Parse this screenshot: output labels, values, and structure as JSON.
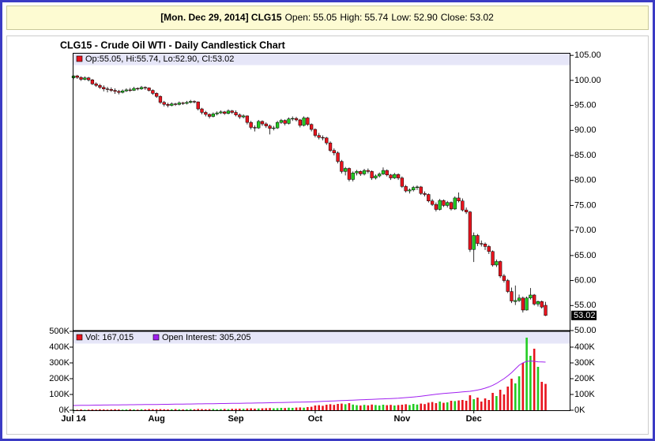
{
  "header": {
    "title": "[Mon. Dec 29, 2014] CLG15",
    "fields": [
      {
        "label": "Open:",
        "value": "55.05"
      },
      {
        "label": "High:",
        "value": "55.74"
      },
      {
        "label": "Low:",
        "value": "52.90"
      },
      {
        "label": "Close:",
        "value": "53.02"
      }
    ]
  },
  "chart_data": {
    "type": "candlestick",
    "title": "CLG15 - Crude Oil WTI - Daily Candlestick Chart",
    "legend": "Op:55.05, Hi:55.74, Lo:52.90, Cl:53.02",
    "up_color": "#22cc22",
    "down_color": "#e8141e",
    "categories": [
      "Jul 14",
      null,
      null,
      null,
      null,
      null,
      null,
      null,
      null,
      null,
      null,
      null,
      null,
      null,
      null,
      null,
      null,
      null,
      null,
      null,
      null,
      null,
      "Aug",
      null,
      null,
      null,
      null,
      null,
      null,
      null,
      null,
      null,
      null,
      null,
      null,
      null,
      null,
      null,
      null,
      null,
      null,
      null,
      null,
      "Sep",
      null,
      null,
      null,
      null,
      null,
      null,
      null,
      null,
      null,
      null,
      null,
      null,
      null,
      null,
      null,
      null,
      null,
      null,
      null,
      null,
      "Oct",
      null,
      null,
      null,
      null,
      null,
      null,
      null,
      null,
      null,
      null,
      null,
      null,
      null,
      null,
      null,
      null,
      null,
      null,
      null,
      null,
      null,
      null,
      "Nov",
      null,
      null,
      null,
      null,
      null,
      null,
      null,
      null,
      null,
      null,
      null,
      null,
      null,
      null,
      null,
      null,
      null,
      null,
      "Dec",
      null,
      null,
      null,
      null,
      null,
      null,
      null,
      null,
      null,
      null,
      null,
      null,
      null,
      null,
      null,
      null,
      null,
      null,
      null
    ],
    "ohlc": [
      [
        100.5,
        101.0,
        100.2,
        100.9
      ],
      [
        100.9,
        101.1,
        100.3,
        100.6
      ],
      [
        100.6,
        100.8,
        99.9,
        100.2
      ],
      [
        100.2,
        100.8,
        100.0,
        100.5
      ],
      [
        100.5,
        100.7,
        99.8,
        100.1
      ],
      [
        100.1,
        100.3,
        99.1,
        99.3
      ],
      [
        99.3,
        99.6,
        98.7,
        99.0
      ],
      [
        99.0,
        99.3,
        98.3,
        98.6
      ],
      [
        98.6,
        99.0,
        97.8,
        98.3
      ],
      [
        98.3,
        98.7,
        97.6,
        98.2
      ],
      [
        98.2,
        98.6,
        97.7,
        98.0
      ],
      [
        98.0,
        98.4,
        97.3,
        97.8
      ],
      [
        97.8,
        98.1,
        97.2,
        97.6
      ],
      [
        97.6,
        98.2,
        97.4,
        97.9
      ],
      [
        97.9,
        98.4,
        97.7,
        98.1
      ],
      [
        98.1,
        98.5,
        97.7,
        98.0
      ],
      [
        98.0,
        98.7,
        97.9,
        98.4
      ],
      [
        98.4,
        98.6,
        98.0,
        98.3
      ],
      [
        98.3,
        98.9,
        98.1,
        98.6
      ],
      [
        98.6,
        98.8,
        98.1,
        98.5
      ],
      [
        98.5,
        98.6,
        97.8,
        98.0
      ],
      [
        98.0,
        98.2,
        97.1,
        97.4
      ],
      [
        97.4,
        97.6,
        96.5,
        96.8
      ],
      [
        96.8,
        97.0,
        95.3,
        95.6
      ],
      [
        95.6,
        95.9,
        94.8,
        95.2
      ],
      [
        95.2,
        95.5,
        94.6,
        95.0
      ],
      [
        95.0,
        95.6,
        94.8,
        95.3
      ],
      [
        95.3,
        95.5,
        94.9,
        95.2
      ],
      [
        95.2,
        95.8,
        95.0,
        95.5
      ],
      [
        95.5,
        95.7,
        95.1,
        95.4
      ],
      [
        95.4,
        95.9,
        95.2,
        95.6
      ],
      [
        95.6,
        96.1,
        95.4,
        95.8
      ],
      [
        95.8,
        96.0,
        95.4,
        95.7
      ],
      [
        95.7,
        95.8,
        94.0,
        94.3
      ],
      [
        94.3,
        94.5,
        93.2,
        93.6
      ],
      [
        93.6,
        93.9,
        92.8,
        93.2
      ],
      [
        93.2,
        93.4,
        92.4,
        92.8
      ],
      [
        92.8,
        93.6,
        92.6,
        93.3
      ],
      [
        93.3,
        93.8,
        93.0,
        93.5
      ],
      [
        93.5,
        94.0,
        93.3,
        93.7
      ],
      [
        93.7,
        93.9,
        93.1,
        93.4
      ],
      [
        93.4,
        94.2,
        93.2,
        93.9
      ],
      [
        93.9,
        94.1,
        93.3,
        93.6
      ],
      [
        93.6,
        94.0,
        92.8,
        93.1
      ],
      [
        93.1,
        93.4,
        92.3,
        92.7
      ],
      [
        92.7,
        93.2,
        92.4,
        92.9
      ],
      [
        92.9,
        93.0,
        91.2,
        91.6
      ],
      [
        91.6,
        91.9,
        90.2,
        90.6
      ],
      [
        90.6,
        91.0,
        89.8,
        90.5
      ],
      [
        90.5,
        92.1,
        90.3,
        91.8
      ],
      [
        91.8,
        92.0,
        90.9,
        91.3
      ],
      [
        91.3,
        91.6,
        90.5,
        90.9
      ],
      [
        90.9,
        91.2,
        89.2,
        90.4
      ],
      [
        90.4,
        90.9,
        90.0,
        90.5
      ],
      [
        90.5,
        91.9,
        90.3,
        91.6
      ],
      [
        91.6,
        92.3,
        91.3,
        92.0
      ],
      [
        92.0,
        92.2,
        91.0,
        91.4
      ],
      [
        91.4,
        92.6,
        91.2,
        92.3
      ],
      [
        92.3,
        92.8,
        91.9,
        92.4
      ],
      [
        92.4,
        92.7,
        91.8,
        92.1
      ],
      [
        92.1,
        92.3,
        90.6,
        91.0
      ],
      [
        91.0,
        92.8,
        90.8,
        92.5
      ],
      [
        92.5,
        92.7,
        90.9,
        91.2
      ],
      [
        91.2,
        91.4,
        89.8,
        90.2
      ],
      [
        90.2,
        90.4,
        88.6,
        89.0
      ],
      [
        89.0,
        89.5,
        88.2,
        88.6
      ],
      [
        88.6,
        89.0,
        88.0,
        88.5
      ],
      [
        88.5,
        88.7,
        87.1,
        87.5
      ],
      [
        87.5,
        87.8,
        85.7,
        86.0
      ],
      [
        86.0,
        86.4,
        85.0,
        85.5
      ],
      [
        85.5,
        85.8,
        83.4,
        83.8
      ],
      [
        83.8,
        84.1,
        81.4,
        81.8
      ],
      [
        81.8,
        82.7,
        81.0,
        82.4
      ],
      [
        82.4,
        82.6,
        79.8,
        80.2
      ],
      [
        80.2,
        81.8,
        79.8,
        81.5
      ],
      [
        81.5,
        82.1,
        81.0,
        81.8
      ],
      [
        81.8,
        82.0,
        80.9,
        81.3
      ],
      [
        81.3,
        82.3,
        81.0,
        82.0
      ],
      [
        82.0,
        82.4,
        81.4,
        81.8
      ],
      [
        81.8,
        82.0,
        80.1,
        80.5
      ],
      [
        80.5,
        81.2,
        80.2,
        80.9
      ],
      [
        80.9,
        81.6,
        80.6,
        81.3
      ],
      [
        81.3,
        82.6,
        81.1,
        82.0
      ],
      [
        82.0,
        82.2,
        80.8,
        81.1
      ],
      [
        81.1,
        81.3,
        80.1,
        80.5
      ],
      [
        80.5,
        81.5,
        80.3,
        81.2
      ],
      [
        81.2,
        81.4,
        80.1,
        80.5
      ],
      [
        80.5,
        80.8,
        78.5,
        78.8
      ],
      [
        78.8,
        79.1,
        77.6,
        77.9
      ],
      [
        77.9,
        78.4,
        77.4,
        78.1
      ],
      [
        78.1,
        78.9,
        77.8,
        78.6
      ],
      [
        78.6,
        79.0,
        78.1,
        78.7
      ],
      [
        78.7,
        78.9,
        77.1,
        77.4
      ],
      [
        77.4,
        77.8,
        76.8,
        77.2
      ],
      [
        77.2,
        77.4,
        75.6,
        75.9
      ],
      [
        75.9,
        76.3,
        74.9,
        75.2
      ],
      [
        75.2,
        75.6,
        73.8,
        74.2
      ],
      [
        74.2,
        76.3,
        74.0,
        76.0
      ],
      [
        76.0,
        76.2,
        74.7,
        75.0
      ],
      [
        75.0,
        75.9,
        74.6,
        75.6
      ],
      [
        75.6,
        75.8,
        74.0,
        74.3
      ],
      [
        74.3,
        76.8,
        74.1,
        76.5
      ],
      [
        76.5,
        77.6,
        75.6,
        75.9
      ],
      [
        75.9,
        76.4,
        73.8,
        74.1
      ],
      [
        74.1,
        74.6,
        73.3,
        73.7
      ],
      [
        73.7,
        73.9,
        65.7,
        66.2
      ],
      [
        66.2,
        69.6,
        63.7,
        69.0
      ],
      [
        69.0,
        69.3,
        66.9,
        67.4
      ],
      [
        67.4,
        68.0,
        66.8,
        67.3
      ],
      [
        67.3,
        67.6,
        66.1,
        66.8
      ],
      [
        66.8,
        67.1,
        65.3,
        65.8
      ],
      [
        65.8,
        66.0,
        62.8,
        63.1
      ],
      [
        63.1,
        64.2,
        62.7,
        63.8
      ],
      [
        63.8,
        64.0,
        60.5,
        60.9
      ],
      [
        60.9,
        61.3,
        59.6,
        60.0
      ],
      [
        60.0,
        60.3,
        57.5,
        57.8
      ],
      [
        57.8,
        58.6,
        55.5,
        55.9
      ],
      [
        55.8,
        59.0,
        55.1,
        56.0
      ],
      [
        56.0,
        57.2,
        55.7,
        56.5
      ],
      [
        56.5,
        56.8,
        53.6,
        54.1
      ],
      [
        54.1,
        56.8,
        54.0,
        56.5
      ],
      [
        56.5,
        58.5,
        56.2,
        57.1
      ],
      [
        57.1,
        57.3,
        55.0,
        55.3
      ],
      [
        55.3,
        56.0,
        54.8,
        55.8
      ],
      [
        55.8,
        56.0,
        54.4,
        54.7
      ],
      [
        55.05,
        55.74,
        52.9,
        53.02
      ]
    ],
    "ylim": [
      50,
      105.5
    ],
    "yticks": [
      {
        "value": 50,
        "label": "50.00"
      },
      {
        "value": 55,
        "label": "55.00"
      },
      {
        "value": 60,
        "label": "60.00"
      },
      {
        "value": 65,
        "label": "65.00"
      },
      {
        "value": 70,
        "label": "70.00"
      },
      {
        "value": 75,
        "label": "75.00"
      },
      {
        "value": 80,
        "label": "80.00"
      },
      {
        "value": 85,
        "label": "85.00"
      },
      {
        "value": 90,
        "label": "90.00"
      },
      {
        "value": 95,
        "label": "95.00"
      },
      {
        "value": 100,
        "label": "100.00"
      },
      {
        "value": 105,
        "label": "105.00"
      }
    ],
    "last_label": {
      "value": 53.02,
      "label": "53.02"
    },
    "volume": {
      "name": "Vol: 167,015",
      "values": [
        4000,
        3000,
        5000,
        3000,
        4000,
        5000,
        4000,
        6000,
        5000,
        4000,
        5000,
        6000,
        5000,
        4000,
        5000,
        6000,
        5000,
        4000,
        6000,
        5000,
        7000,
        6000,
        6000,
        7000,
        6000,
        5000,
        6000,
        7000,
        6000,
        5000,
        6000,
        7000,
        6000,
        8000,
        7000,
        6000,
        7000,
        8000,
        6000,
        7000,
        8000,
        7000,
        9000,
        9000,
        10000,
        9000,
        11000,
        12000,
        10000,
        11000,
        12000,
        13000,
        14000,
        12000,
        13000,
        15000,
        14000,
        16000,
        15000,
        17000,
        18000,
        16000,
        20000,
        22000,
        30000,
        32000,
        28000,
        35000,
        38000,
        34000,
        40000,
        42000,
        38000,
        45000,
        36000,
        32000,
        30000,
        34000,
        31000,
        36000,
        33000,
        30000,
        35000,
        32000,
        34000,
        30000,
        33000,
        35000,
        38000,
        33000,
        40000,
        36000,
        42000,
        39000,
        48000,
        52000,
        45000,
        55000,
        47000,
        50000,
        60000,
        58000,
        62000,
        65000,
        60000,
        95000,
        70000,
        80000,
        55000,
        75000,
        65000,
        110000,
        90000,
        130000,
        100000,
        150000,
        200000,
        170000,
        215000,
        300000,
        460000,
        345000,
        390000,
        275000,
        180000,
        167015
      ]
    },
    "open_interest": {
      "name": "Open Interest: 305,205",
      "color": "#a020f0",
      "values": [
        30000,
        30500,
        31000,
        31200,
        31500,
        32000,
        32300,
        32600,
        33000,
        33200,
        33500,
        33800,
        34000,
        34300,
        34500,
        34800,
        35000,
        35300,
        35500,
        35800,
        36000,
        36300,
        36600,
        37000,
        37300,
        37600,
        38000,
        38300,
        38600,
        39000,
        39300,
        39600,
        40000,
        40300,
        40600,
        41000,
        41300,
        41600,
        42000,
        42300,
        42600,
        43000,
        43300,
        43600,
        44000,
        44400,
        44800,
        45200,
        45600,
        46000,
        46500,
        47000,
        47500,
        48000,
        48500,
        49000,
        49500,
        50000,
        50500,
        51000,
        51500,
        52000,
        52500,
        53000,
        54000,
        55000,
        56000,
        57000,
        58000,
        59000,
        60000,
        61000,
        62000,
        63000,
        64000,
        65000,
        66000,
        67000,
        68000,
        69000,
        70000,
        71000,
        72000,
        73000,
        74000,
        75000,
        76000,
        78000,
        80000,
        82000,
        84000,
        86000,
        89000,
        92000,
        95000,
        98000,
        101000,
        104000,
        106000,
        108000,
        110000,
        112000,
        114000,
        116000,
        118000,
        120000,
        124000,
        128000,
        133000,
        140000,
        148000,
        158000,
        170000,
        185000,
        200000,
        218000,
        238000,
        262000,
        285000,
        300000,
        310000,
        312000,
        310000,
        307000,
        306000,
        305205
      ]
    },
    "vol_ylim": [
      0,
      500000
    ],
    "vol_yticks": [
      {
        "value": 0,
        "label": "0K"
      },
      {
        "value": 100000,
        "label": "100K"
      },
      {
        "value": 200000,
        "label": "200K"
      },
      {
        "value": 300000,
        "label": "300K"
      },
      {
        "value": 400000,
        "label": "400K"
      },
      {
        "value": 500000,
        "label": "500K"
      }
    ],
    "y2lim": [
      0,
      500000
    ],
    "y2ticks": [
      {
        "value": 0,
        "label": "0K"
      },
      {
        "value": 100000,
        "label": "100K"
      },
      {
        "value": 200000,
        "label": "200K"
      },
      {
        "value": 300000,
        "label": "300K"
      },
      {
        "value": 400000,
        "label": "400K"
      }
    ]
  }
}
